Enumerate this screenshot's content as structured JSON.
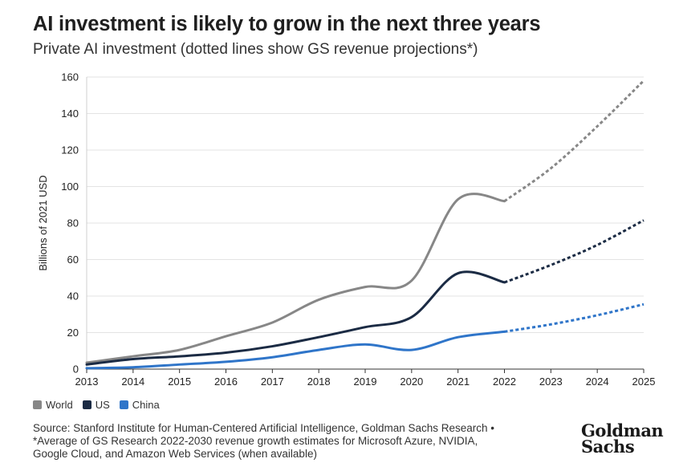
{
  "header": {
    "title": "AI investment is likely to grow in the next three years",
    "subtitle": "Private AI investment (dotted lines show GS revenue projections*)"
  },
  "footer": {
    "source_line1": "Source: Stanford Institute for Human-Centered Artificial Intelligence, Goldman Sachs Research •",
    "source_line2": "*Average of GS Research 2022-2030 revenue growth estimates for Microsoft Azure, NVIDIA,",
    "source_line3": "Google Cloud, and Amazon Web Services (when available)",
    "logo_line1": "Goldman",
    "logo_line2": "Sachs"
  },
  "chart_data": {
    "type": "line",
    "title": "AI investment is likely to grow in the next three years",
    "subtitle": "Private AI investment (dotted lines show GS revenue projections*)",
    "xlabel": "",
    "ylabel": "Billions of 2021 USD",
    "xlim": [
      2013,
      2025
    ],
    "ylim": [
      0,
      160
    ],
    "x_ticks": [
      2013,
      2014,
      2015,
      2016,
      2017,
      2018,
      2019,
      2020,
      2021,
      2022,
      2023,
      2024,
      2025
    ],
    "y_ticks": [
      0,
      20,
      40,
      60,
      80,
      100,
      120,
      140,
      160
    ],
    "grid": "horizontal",
    "legend": "bottom-left",
    "projection_start": 2022,
    "series": [
      {
        "name": "World",
        "color": "#878787",
        "x": [
          2013,
          2014,
          2015,
          2016,
          2017,
          2018,
          2019,
          2020,
          2021,
          2022
        ],
        "values": [
          3.5,
          7,
          10.5,
          18,
          25.5,
          38,
          45,
          48.5,
          93,
          92
        ],
        "projection": {
          "x": [
            2022,
            2023,
            2024,
            2025
          ],
          "values": [
            92,
            110,
            133,
            158
          ]
        }
      },
      {
        "name": "US",
        "color": "#1b2b44",
        "x": [
          2013,
          2014,
          2015,
          2016,
          2017,
          2018,
          2019,
          2020,
          2021,
          2022
        ],
        "values": [
          2.5,
          5.5,
          7,
          9,
          12.5,
          17.5,
          23,
          28.5,
          52.5,
          47.5
        ],
        "projection": {
          "x": [
            2022,
            2023,
            2024,
            2025
          ],
          "values": [
            47.5,
            57,
            68,
            81.5
          ]
        }
      },
      {
        "name": "China",
        "color": "#2f75c9",
        "x": [
          2013,
          2014,
          2015,
          2016,
          2017,
          2018,
          2019,
          2020,
          2021,
          2022
        ],
        "values": [
          0.5,
          1,
          2.5,
          4,
          6.5,
          10.5,
          13.5,
          10.5,
          17.5,
          20.5
        ],
        "projection": {
          "x": [
            2022,
            2023,
            2024,
            2025
          ],
          "values": [
            20.5,
            24.5,
            29.5,
            35.5
          ]
        }
      }
    ]
  }
}
